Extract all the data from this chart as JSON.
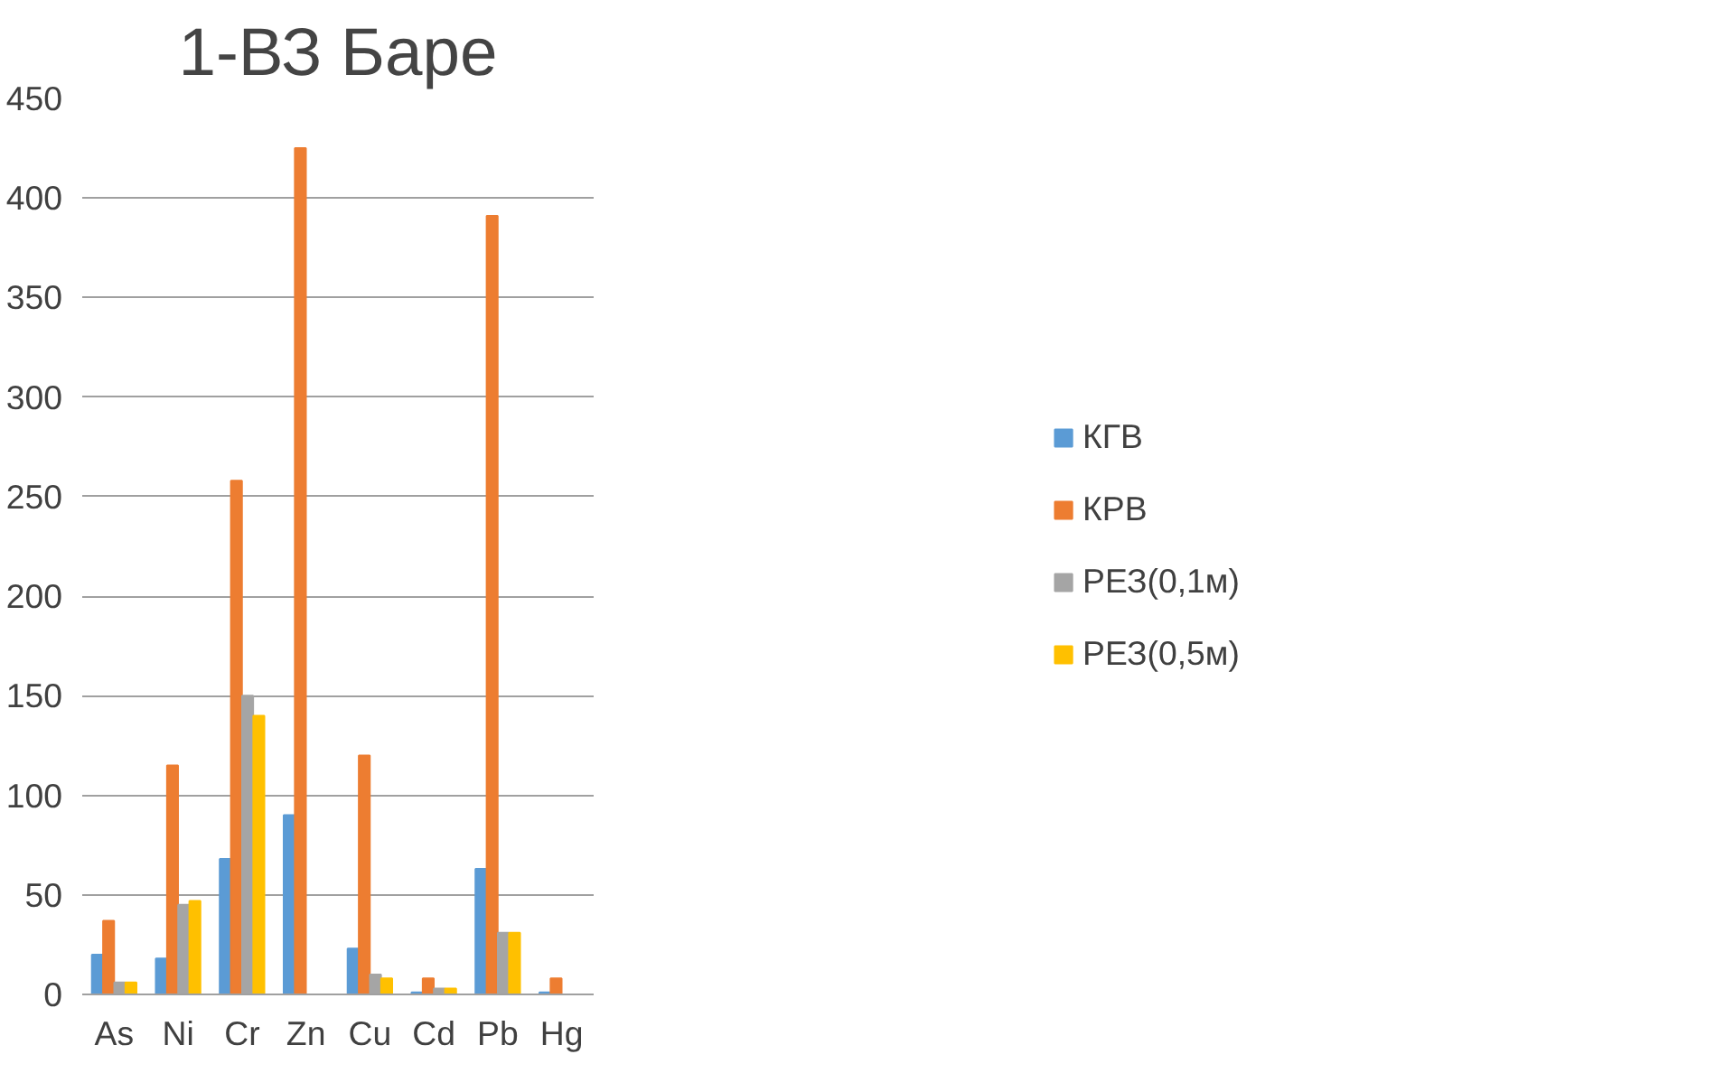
{
  "chart_data": {
    "type": "bar",
    "title": "1-ВЗ Баре",
    "categories": [
      "As",
      "Ni",
      "Cr",
      "Zn",
      "Cu",
      "Cd",
      "Pb",
      "Hg"
    ],
    "series": [
      {
        "name": "КГВ",
        "color": "#5b9bd5",
        "values": [
          20,
          18,
          68,
          90,
          23,
          1,
          63,
          1
        ]
      },
      {
        "name": "КРВ",
        "color": "#ed7d31",
        "values": [
          37,
          115,
          258,
          425,
          120,
          8,
          391,
          8
        ]
      },
      {
        "name": "РЕЗ(0,1м)",
        "color": "#a5a5a5",
        "values": [
          6,
          45,
          150,
          null,
          10,
          3,
          31,
          null
        ]
      },
      {
        "name": "РЕЗ(0,5м)",
        "color": "#ffc000",
        "values": [
          6,
          47,
          140,
          null,
          8,
          3,
          31,
          null
        ]
      }
    ],
    "ylim": [
      0,
      450
    ],
    "yticks": [
      0,
      50,
      100,
      150,
      200,
      250,
      300,
      350,
      400,
      450
    ],
    "grid": "y",
    "legend": "right"
  }
}
